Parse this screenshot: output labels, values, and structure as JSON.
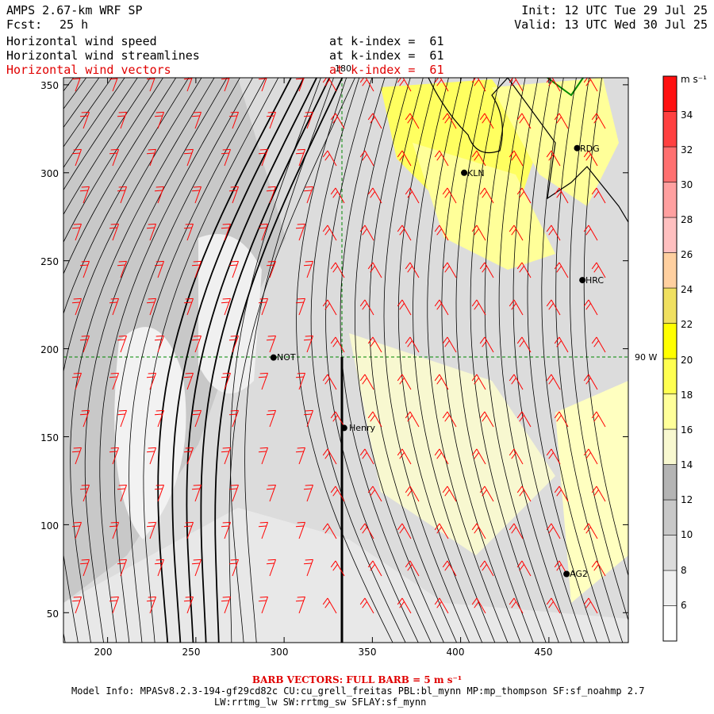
{
  "header": {
    "model": "AMPS 2.67-km WRF SP",
    "fcst_label": "Fcst:",
    "fcst_value": "25 h",
    "init": "Init: 12 UTC Tue 29 Jul 25",
    "valid": "Valid: 13 UTC Wed 30 Jul 25",
    "fields": [
      {
        "name": "Horizontal wind speed",
        "level": "at k-index =  61",
        "color": "#000000"
      },
      {
        "name": "Horizontal wind streamlines",
        "level": "at k-index =  61",
        "color": "#000000"
      },
      {
        "name": "Horizontal wind vectors",
        "level": "at k-index =  61",
        "color": "#e00000"
      }
    ]
  },
  "map": {
    "x_ticks": [
      "200",
      "250",
      "300",
      "350",
      "400",
      "450"
    ],
    "y_ticks": [
      "50",
      "100",
      "150",
      "200",
      "250",
      "300",
      "350"
    ],
    "xlim": [
      175,
      495
    ],
    "ylim": [
      33,
      354
    ],
    "meridian_label": "180",
    "parallel_label": "90 W",
    "stations": [
      {
        "name": "RDG",
        "x": 466,
        "y": 314
      },
      {
        "name": "KLN",
        "x": 402,
        "y": 300
      },
      {
        "name": "HRC",
        "x": 469,
        "y": 239
      },
      {
        "name": "NOT",
        "x": 294,
        "y": 195
      },
      {
        "name": "Henry",
        "x": 334,
        "y": 155
      },
      {
        "name": "AG2",
        "x": 460,
        "y": 72
      }
    ],
    "colors": {
      "barb": "#ff0000",
      "grid": "#008800",
      "streamline": "#000000"
    }
  },
  "colorbar": {
    "units": "m s⁻¹",
    "labels": [
      "34",
      "32",
      "30",
      "28",
      "26",
      "24",
      "22",
      "20",
      "18",
      "16",
      "14",
      "12",
      "10",
      "8",
      "6"
    ],
    "colors": [
      "#ffffff",
      "#f0f0f0",
      "#dcdcdc",
      "#c8c8c8",
      "#b4b4b4",
      "#f8f8d0",
      "#ffff9a",
      "#ffff50",
      "#ffff00",
      "#f0e060",
      "#ffd0a0",
      "#ffc0c0",
      "#ffa0a0",
      "#ff7070",
      "#ff4040",
      "#ff1010"
    ]
  },
  "footer": {
    "barb_note": "BARB VECTORS:  FULL BARB = 5 m s⁻¹",
    "model_info": "Model Info: MPASv8.2.3-194-gf29cd82c CU:cu_grell_freitas PBL:bl_mynn MP:mp_thompson SF:sf_noahmp 2.7",
    "physics": "LW:rrtmg_lw SW:rrtmg_sw SFLAY:sf_mynn"
  }
}
